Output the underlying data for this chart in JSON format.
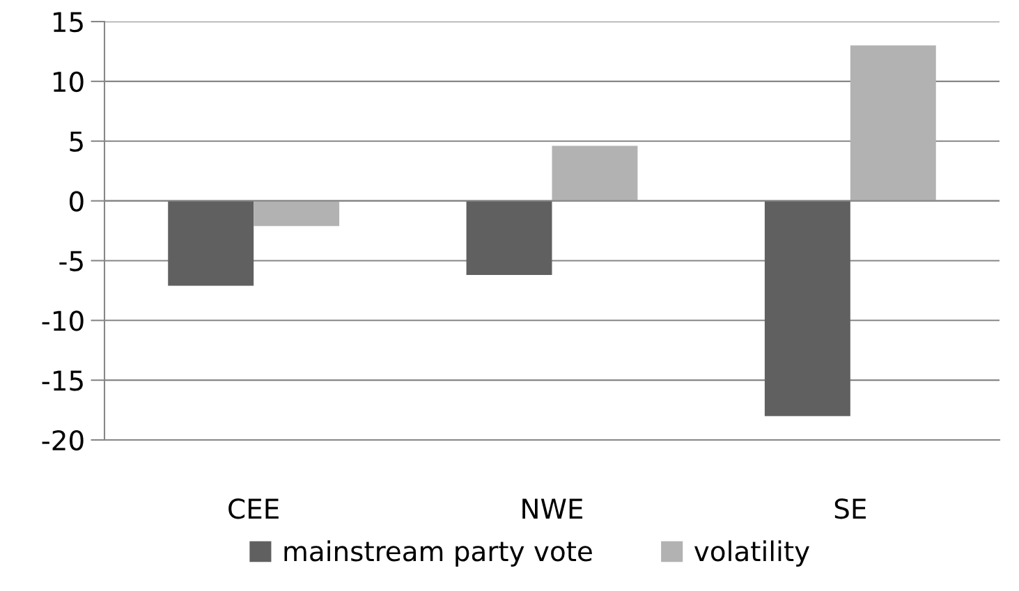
{
  "chart_data": {
    "type": "bar",
    "categories": [
      "CEE",
      "NWE",
      "SE"
    ],
    "series": [
      {
        "name": "mainstream party vote",
        "color": "#606060",
        "values": [
          -7.1,
          -6.2,
          -18.0
        ]
      },
      {
        "name": "volatility",
        "color": "#b2b2b2",
        "values": [
          -2.1,
          4.6,
          13.0
        ]
      }
    ],
    "ylim": [
      -20,
      15
    ],
    "yticks": [
      -20,
      -15,
      -10,
      -5,
      0,
      5,
      10,
      15
    ],
    "grid": "y",
    "legend": "bottom"
  }
}
